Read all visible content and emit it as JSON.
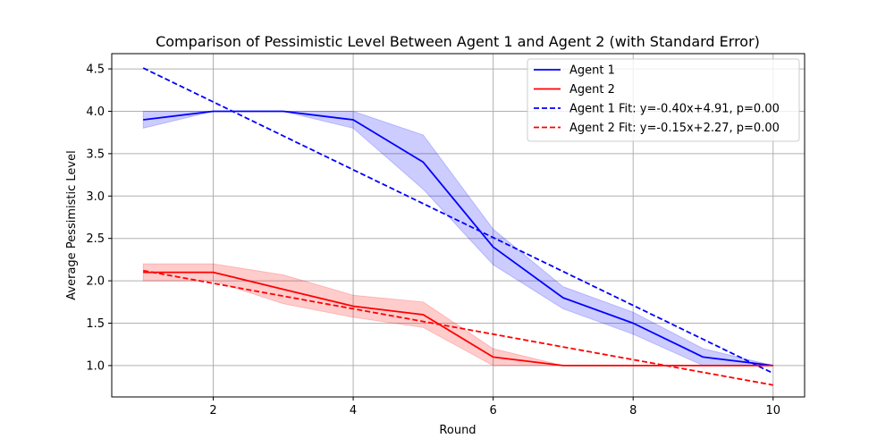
{
  "chart_data": {
    "type": "line",
    "title": "Comparison of Pessimistic Level Between Agent 1 and Agent 2 (with Standard Error)",
    "xlabel": "Round",
    "ylabel": "Average Pessimistic Level",
    "xlim": [
      0.55,
      10.45
    ],
    "ylim": [
      0.63,
      4.68
    ],
    "xticks": [
      2,
      4,
      6,
      8,
      10
    ],
    "xtick_labels": [
      "2",
      "4",
      "6",
      "8",
      "10"
    ],
    "yticks": [
      1.0,
      1.5,
      2.0,
      2.5,
      3.0,
      3.5,
      4.0,
      4.5
    ],
    "ytick_labels": [
      "1.0",
      "1.5",
      "2.0",
      "2.5",
      "3.0",
      "3.5",
      "4.0",
      "4.5"
    ],
    "grid": true,
    "legend_position": "upper right",
    "x": [
      1,
      2,
      3,
      4,
      5,
      6,
      7,
      8,
      9,
      10
    ],
    "series": [
      {
        "name": "Agent 1",
        "color": "#0000ff",
        "style": "solid",
        "values": [
          3.9,
          4.0,
          4.0,
          3.9,
          3.4,
          2.4,
          1.8,
          1.5,
          1.1,
          1.0
        ],
        "lower": [
          3.8,
          4.0,
          4.0,
          3.8,
          3.08,
          2.19,
          1.67,
          1.37,
          1.0,
          1.0
        ],
        "upper": [
          4.0,
          4.0,
          4.0,
          4.0,
          3.72,
          2.61,
          1.93,
          1.63,
          1.2,
          1.0
        ]
      },
      {
        "name": "Agent 2",
        "color": "#ff0000",
        "style": "solid",
        "values": [
          2.1,
          2.1,
          1.9,
          1.7,
          1.6,
          1.1,
          1.0,
          1.0,
          1.0,
          1.0
        ],
        "lower": [
          2.0,
          2.0,
          1.73,
          1.57,
          1.45,
          1.0,
          1.0,
          1.0,
          1.0,
          1.0
        ],
        "upper": [
          2.2,
          2.2,
          2.07,
          1.83,
          1.75,
          1.2,
          1.0,
          1.0,
          1.0,
          1.0
        ]
      },
      {
        "name": "Agent 1 Fit: y=-0.40x+4.91, p=0.00",
        "color": "#0000ff",
        "style": "dashed",
        "values": [
          4.51,
          4.11,
          3.71,
          3.31,
          2.91,
          2.51,
          2.11,
          1.71,
          1.31,
          0.91
        ]
      },
      {
        "name": "Agent 2 Fit: y=-0.15x+2.27, p=0.00",
        "color": "#ff0000",
        "style": "dashed",
        "values": [
          2.12,
          1.97,
          1.82,
          1.67,
          1.52,
          1.37,
          1.22,
          1.07,
          0.92,
          0.77
        ]
      }
    ]
  }
}
